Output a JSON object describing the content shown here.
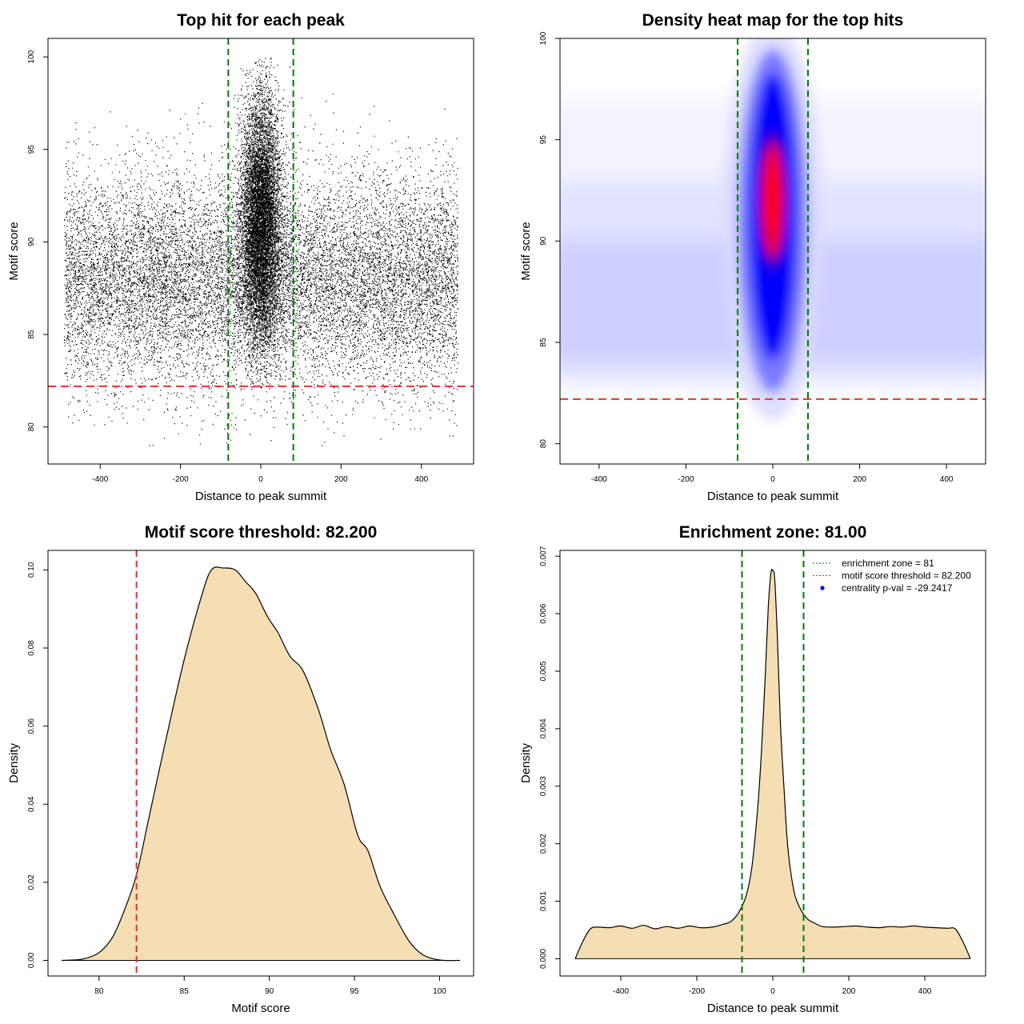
{
  "chart_data": [
    {
      "type": "scatter",
      "title": "Top hit for each peak",
      "xlabel": "Distance to peak summit",
      "ylabel": "Motif score",
      "xlim": [
        -530,
        530
      ],
      "ylim": [
        78,
        101
      ],
      "xticks": [
        -400,
        -200,
        0,
        200,
        400
      ],
      "yticks": [
        80,
        85,
        90,
        95,
        100
      ],
      "grid": false,
      "series": [
        {
          "values_description": "~25000 motif hits; background uniform in x from -490 to 490 with scores mostly 82-95; dense central cluster near x=0 (sd ~25) with scores 83-100",
          "background": {
            "x_range": [
              -490,
              490
            ],
            "score_peak": 87,
            "score_range": [
              79,
              99
            ]
          },
          "central_cluster": {
            "x_center": 0,
            "x_sd": 25,
            "score_mean": 91,
            "score_range": [
              82,
              100
            ]
          }
        }
      ],
      "vlines": [
        {
          "x": -81,
          "color": "#007a00",
          "style": "dashed"
        },
        {
          "x": 81,
          "color": "#007a00",
          "style": "dashed"
        }
      ],
      "hlines": [
        {
          "y": 82.2,
          "color": "#ee3030",
          "style": "dashed"
        }
      ]
    },
    {
      "type": "heatmap",
      "title": "Density heat map for the top hits",
      "xlabel": "Distance to peak summit",
      "ylabel": "Motif score",
      "xlim": [
        -490,
        490
      ],
      "ylim": [
        79,
        100
      ],
      "xticks": [
        -400,
        -200,
        0,
        200,
        400
      ],
      "yticks": [
        80,
        85,
        90,
        95,
        100
      ],
      "colors": [
        "#ffffff",
        "#0000ff",
        "#ff0000"
      ],
      "hotspot": {
        "x": 0,
        "y": 92
      },
      "vlines": [
        {
          "x": -81,
          "color": "#007a00",
          "style": "dashed"
        },
        {
          "x": 81,
          "color": "#007a00",
          "style": "dashed"
        }
      ],
      "hlines": [
        {
          "y": 82.2,
          "color": "#ee3030",
          "style": "dashed"
        }
      ]
    },
    {
      "type": "area",
      "title": "Motif score threshold: 82.200",
      "xlabel": "Motif score",
      "ylabel": "Density",
      "xlim": [
        77,
        102
      ],
      "ylim": [
        -0.004,
        0.105
      ],
      "xticks": [
        80,
        85,
        90,
        95,
        100
      ],
      "yticks": [
        0.0,
        0.02,
        0.04,
        0.06,
        0.08,
        0.1
      ],
      "ytick_labels": [
        "0.00",
        "0.02",
        "0.04",
        "0.06",
        "0.08",
        "0.10"
      ],
      "fill": "#f5deb3",
      "x": [
        77.8,
        79,
        80,
        80.8,
        81.5,
        82.2,
        83,
        84,
        85,
        86,
        86.6,
        87.3,
        88,
        88.6,
        89.2,
        89.9,
        90.5,
        91.2,
        92,
        92.9,
        93.6,
        94.4,
        95.2,
        95.8,
        96.5,
        97.3,
        98.2,
        99,
        100,
        101.2
      ],
      "y": [
        0.0,
        0.0003,
        0.002,
        0.006,
        0.013,
        0.022,
        0.038,
        0.058,
        0.077,
        0.093,
        0.1,
        0.1005,
        0.1,
        0.097,
        0.094,
        0.088,
        0.084,
        0.078,
        0.074,
        0.064,
        0.054,
        0.045,
        0.032,
        0.028,
        0.019,
        0.012,
        0.005,
        0.0015,
        0.0001,
        0.0
      ],
      "vlines": [
        {
          "x": 82.2,
          "color": "#dd3030",
          "style": "dashed"
        }
      ]
    },
    {
      "type": "area",
      "title": "Enrichment zone: 81.00",
      "xlabel": "Distance to peak summit",
      "ylabel": "Density",
      "xlim": [
        -560,
        560
      ],
      "ylim": [
        -0.0003,
        0.0071
      ],
      "xticks": [
        -400,
        -200,
        0,
        200,
        400
      ],
      "yticks": [
        0.0,
        0.001,
        0.002,
        0.003,
        0.004,
        0.005,
        0.006,
        0.007
      ],
      "ytick_labels": [
        "0.000",
        "0.001",
        "0.002",
        "0.003",
        "0.004",
        "0.005",
        "0.006",
        "0.007"
      ],
      "fill": "#f5deb3",
      "x": [
        -520,
        -500,
        -480,
        -460,
        -430,
        -400,
        -370,
        -340,
        -310,
        -280,
        -250,
        -220,
        -190,
        -160,
        -130,
        -110,
        -90,
        -70,
        -55,
        -40,
        -30,
        -20,
        -12,
        -5,
        0,
        5,
        12,
        20,
        30,
        40,
        55,
        70,
        90,
        110,
        130,
        160,
        190,
        220,
        250,
        280,
        310,
        340,
        370,
        400,
        430,
        460,
        480,
        500,
        520
      ],
      "y": [
        0.0,
        0.0003,
        0.00052,
        0.00055,
        0.00054,
        0.00057,
        0.00053,
        0.00058,
        0.00052,
        0.00056,
        0.00053,
        0.00057,
        0.00054,
        0.00055,
        0.0006,
        0.00065,
        0.0008,
        0.0011,
        0.0016,
        0.0026,
        0.0036,
        0.0049,
        0.0061,
        0.0067,
        0.00675,
        0.0066,
        0.0056,
        0.0041,
        0.0029,
        0.0019,
        0.0012,
        0.0009,
        0.0007,
        0.00062,
        0.00056,
        0.00055,
        0.00056,
        0.00057,
        0.00055,
        0.00054,
        0.00056,
        0.00055,
        0.00057,
        0.00055,
        0.00054,
        0.00053,
        0.00052,
        0.0003,
        0.0
      ],
      "vlines": [
        {
          "x": -81,
          "color": "#007a00",
          "style": "dashed"
        },
        {
          "x": 81,
          "color": "#007a00",
          "style": "dashed"
        }
      ],
      "legend": {
        "position": "top-right",
        "entries": [
          {
            "label": "enrichment zone = 81",
            "color": "#007a00",
            "style": "dotted-line"
          },
          {
            "label": "motif score threshold = 82.200",
            "color": "#ee3030",
            "style": "dotted-line"
          },
          {
            "label": "centrality p-val = -29.2417",
            "color": "#0000ff",
            "style": "point"
          }
        ]
      }
    }
  ]
}
